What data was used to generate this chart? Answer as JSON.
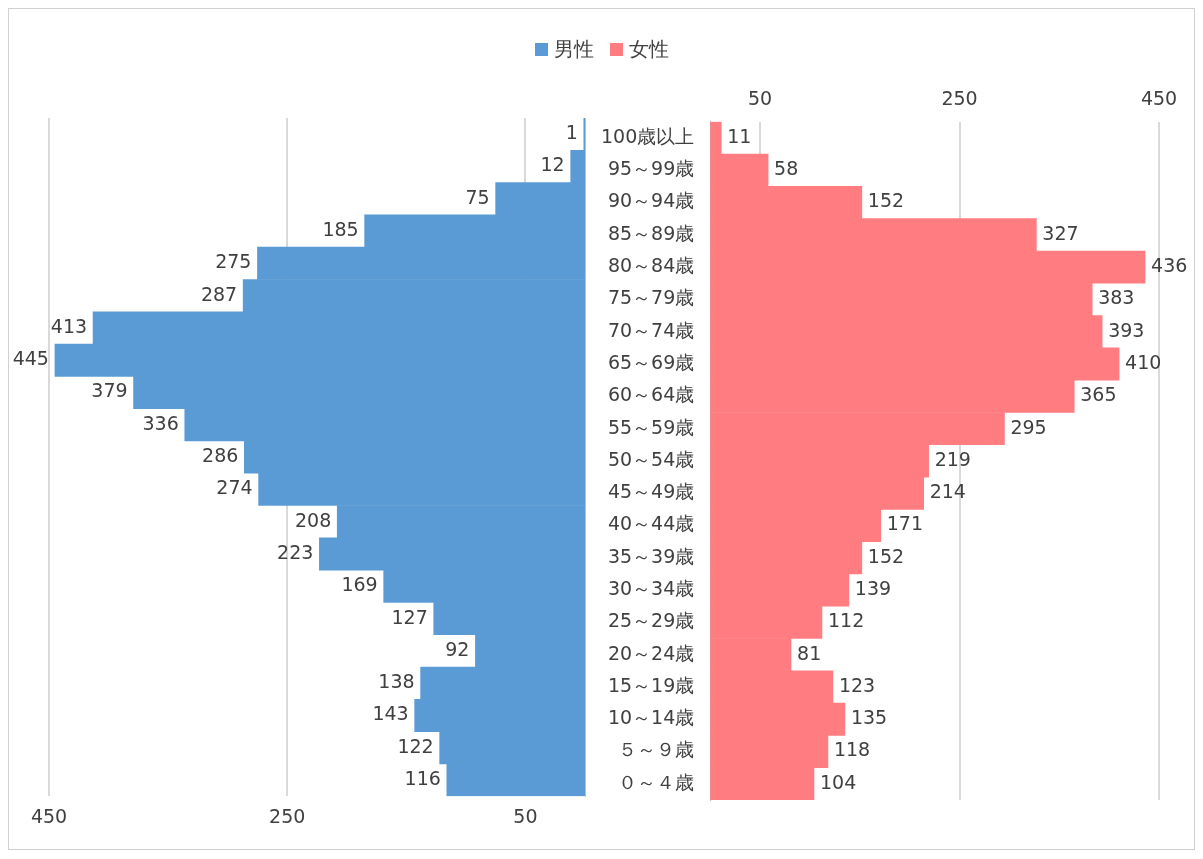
{
  "chart_data": [
    {
      "type": "bar",
      "orientation": "horizontal",
      "categories": [
        null,
        null,
        null,
        null,
        null,
        null,
        null,
        null,
        null,
        null,
        null,
        null,
        null,
        null,
        null,
        null,
        null,
        null,
        null,
        null,
        null
      ],
      "series": [
        {
          "name": "男性",
          "color": "#5b9bd5",
          "values": [
            1,
            12,
            75,
            185,
            275,
            287,
            413,
            445,
            379,
            336,
            286,
            274,
            208,
            223,
            169,
            127,
            92,
            138,
            143,
            122,
            116
          ]
        }
      ],
      "xlim": [
        450,
        0
      ],
      "xticks": [
        450,
        250,
        50
      ],
      "grid": "x",
      "data_labels": true,
      "legend": "top",
      "tick_labels": "x"
    },
    {
      "type": "bar",
      "orientation": "horizontal",
      "categories": [
        "100歳以上",
        "95～99歳",
        "90～94歳",
        "85～89歳",
        "80～84歳",
        "75～79歳",
        "70～74歳",
        "65～69歳",
        "60～64歳",
        "55～59歳",
        "50～54歳",
        "45～49歳",
        "40～44歳",
        "35～39歳",
        "30～34歳",
        "25～29歳",
        "20～24歳",
        "15～19歳",
        "10～14歳",
        "５～９歳",
        "０～４歳"
      ],
      "series": [
        {
          "name": "女性",
          "color": "#ff7c80",
          "values": [
            11,
            58,
            152,
            327,
            436,
            383,
            393,
            410,
            365,
            295,
            219,
            214,
            171,
            152,
            139,
            112,
            81,
            123,
            135,
            118,
            104
          ]
        }
      ],
      "xlim": [
        0,
        450
      ],
      "xticks": [
        50,
        250,
        450
      ],
      "grid": "x",
      "data_labels": true,
      "legend": "top"
    }
  ]
}
